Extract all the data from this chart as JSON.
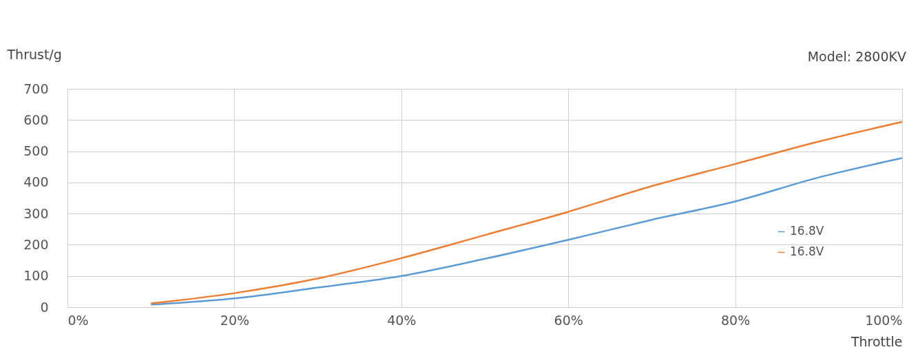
{
  "chart_data": {
    "type": "line",
    "ylabel": "Thrust/g",
    "xlabel": "Throttle",
    "annotations": [
      "Model: 2800KV"
    ],
    "x": [
      10,
      20,
      30,
      40,
      50,
      60,
      70,
      80,
      90,
      100
    ],
    "series": [
      {
        "name": "16.8V",
        "color": "#5b9bd5",
        "values": [
          8,
          28,
          63,
          100,
          155,
          216,
          280,
          339,
          416,
          478
        ]
      },
      {
        "name": "16.8V",
        "color": "#ed7d31",
        "values": [
          12,
          45,
          92,
          157,
          231,
          306,
          388,
          459,
          531,
          594
        ]
      }
    ],
    "xlim": [
      0,
      100
    ],
    "xticks": [
      {
        "value": 0,
        "label": "0%"
      },
      {
        "value": 20,
        "label": "20%"
      },
      {
        "value": 40,
        "label": "40%"
      },
      {
        "value": 60,
        "label": "60%"
      },
      {
        "value": 80,
        "label": "80%"
      },
      {
        "value": 100,
        "label": "100%"
      }
    ],
    "ylim": [
      0,
      700
    ],
    "yticks": [
      0,
      100,
      200,
      300,
      400,
      500,
      600,
      700
    ],
    "grid": true,
    "legend": "right",
    "marker": "none",
    "line_style": "solid"
  }
}
